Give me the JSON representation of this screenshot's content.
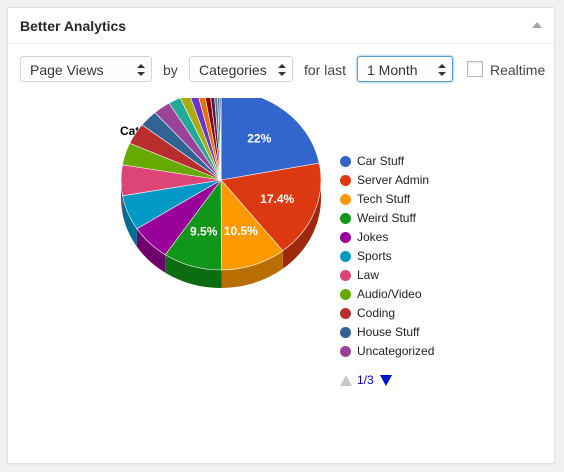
{
  "widget": {
    "title": "Better Analytics"
  },
  "controls": {
    "metric": "Page Views",
    "by_label": "by",
    "dimension": "Categories",
    "for_last_label": "for last",
    "period": "1 Month",
    "realtime_label": "Realtime",
    "realtime_checked": false
  },
  "chart_data": {
    "type": "pie",
    "title": "Categories",
    "slices": [
      {
        "label": "Car Stuff",
        "percent": 22,
        "display": "22%",
        "color": "#3366cc"
      },
      {
        "label": "Server Admin",
        "percent": 17.4,
        "display": "17.4%",
        "color": "#dc3912"
      },
      {
        "label": "Tech Stuff",
        "percent": 10.5,
        "display": "10.5%",
        "color": "#ff9900"
      },
      {
        "label": "Weird Stuff",
        "percent": 9.5,
        "display": "9.5%",
        "color": "#109618"
      },
      {
        "label": "Jokes",
        "percent": 6.5,
        "display": "",
        "color": "#990099"
      },
      {
        "label": "Sports",
        "percent": 6.3,
        "display": "",
        "color": "#0099c6"
      },
      {
        "label": "Law",
        "percent": 5.5,
        "display": "",
        "color": "#dd4477"
      },
      {
        "label": "Audio/Video",
        "percent": 4.0,
        "display": "",
        "color": "#66aa00"
      },
      {
        "label": "Coding",
        "percent": 3.8,
        "display": "",
        "color": "#b82e2e"
      },
      {
        "label": "House Stuff",
        "percent": 3.0,
        "display": "",
        "color": "#316395"
      },
      {
        "label": "Uncategorized",
        "percent": 2.8,
        "display": "",
        "color": "#994499"
      },
      {
        "label": "",
        "percent": 2.0,
        "display": "",
        "color": "#22aa99"
      },
      {
        "label": "",
        "percent": 1.6,
        "display": "",
        "color": "#aaaa11"
      },
      {
        "label": "",
        "percent": 1.3,
        "display": "",
        "color": "#6633cc"
      },
      {
        "label": "",
        "percent": 1.1,
        "display": "",
        "color": "#e67300"
      },
      {
        "label": "",
        "percent": 0.9,
        "display": "",
        "color": "#8b0707"
      },
      {
        "label": "",
        "percent": 0.7,
        "display": "",
        "color": "#651067"
      },
      {
        "label": "",
        "percent": 0.5,
        "display": "",
        "color": "#329262"
      },
      {
        "label": "",
        "percent": 0.4,
        "display": "",
        "color": "#5574a6"
      },
      {
        "label": "",
        "percent": 0.2,
        "display": "",
        "color": "#3b3eac"
      }
    ],
    "legend_position": "right",
    "is_3d": true
  },
  "legend": {
    "items": [
      "Car Stuff",
      "Server Admin",
      "Tech Stuff",
      "Weird Stuff",
      "Jokes",
      "Sports",
      "Law",
      "Audio/Video",
      "Coding",
      "House Stuff",
      "Uncategorized"
    ],
    "pager_text": "1/3"
  },
  "colors": {
    "accent": "#5b9dd9",
    "pager_active": "#0011cc"
  }
}
